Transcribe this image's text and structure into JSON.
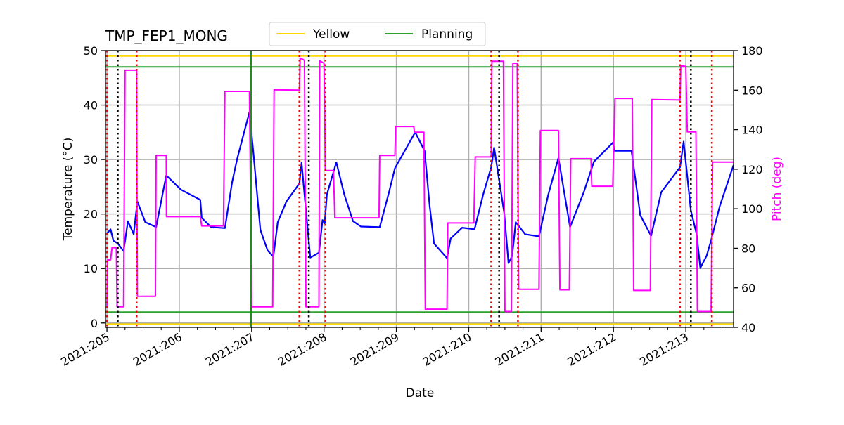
{
  "chart_data": {
    "type": "line",
    "title": "TMP_FEP1_MONG",
    "xlabel": "Date",
    "ylabel": "Temperature (°C)",
    "ylabel_right": "Pitch (deg)",
    "xlim": [
      204.98,
      213.66
    ],
    "ylim": [
      -0.8,
      50
    ],
    "ylim_right": [
      40,
      180
    ],
    "grid": true,
    "legend_placement": "top-center",
    "x_ticks": [
      205,
      206,
      207,
      208,
      209,
      210,
      211,
      212,
      213
    ],
    "x_tick_labels": [
      "2021:205",
      "2021:206",
      "2021:207",
      "2021:208",
      "2021:209",
      "2021:210",
      "2021:211",
      "2021:212",
      "2021:213"
    ],
    "y_ticks": [
      0,
      10,
      20,
      30,
      40,
      50
    ],
    "y_tick_labels": [
      "0",
      "10",
      "20",
      "30",
      "40",
      "50"
    ],
    "y_ticks_right": [
      40,
      60,
      80,
      100,
      120,
      140,
      160,
      180
    ],
    "y_tick_labels_right": [
      "40",
      "60",
      "80",
      "100",
      "120",
      "140",
      "160",
      "180"
    ],
    "colors": {
      "temperature": "#0000ff",
      "pitch": "#ff00ff",
      "yellow": "#ffd700",
      "planning": "#2ca02c",
      "grid": "#b0b0b0",
      "red_events": "#ff0000",
      "black_events": "#000000",
      "green_event": "#228b22"
    },
    "legend": [
      {
        "name": "Yellow",
        "color": "#ffd700"
      },
      {
        "name": "Planning",
        "color": "#2ca02c"
      }
    ],
    "limits": {
      "yellow": [
        49,
        -0.2
      ],
      "planning": [
        47,
        2
      ]
    },
    "event_lines": {
      "red_dotted": [
        205.0,
        205.41,
        207.66,
        208.02,
        210.31,
        210.68,
        212.92,
        213.36
      ],
      "black_dotted": [
        205.15,
        207.79,
        210.42,
        213.07
      ],
      "green_solid": [
        206.99
      ]
    },
    "series": [
      {
        "axis": "left",
        "color": "#0000ff",
        "x": [
          205.0,
          205.05,
          205.09,
          205.15,
          205.23,
          205.29,
          205.37,
          205.42,
          205.53,
          205.68,
          205.82,
          206.02,
          206.29,
          206.31,
          206.44,
          206.63,
          206.73,
          206.8,
          206.9,
          206.97,
          207.02,
          207.12,
          207.22,
          207.3,
          207.36,
          207.48,
          207.66,
          207.69,
          207.81,
          207.93,
          207.98,
          208.01,
          208.04,
          208.17,
          208.28,
          208.4,
          208.51,
          208.77,
          208.9,
          208.98,
          209.26,
          209.39,
          209.46,
          209.52,
          209.7,
          209.75,
          209.91,
          210.08,
          210.2,
          210.31,
          210.35,
          210.49,
          210.55,
          210.6,
          210.65,
          210.78,
          210.97,
          211.1,
          211.24,
          211.4,
          211.59,
          211.73,
          212.0,
          212.01,
          212.25,
          212.37,
          212.52,
          212.66,
          212.92,
          212.97,
          213.07,
          213.15,
          213.2,
          213.29,
          213.35,
          213.47,
          213.66
        ],
        "y": [
          16.4,
          17.2,
          15.1,
          14.6,
          13.2,
          18.7,
          16.3,
          22.3,
          18.5,
          17.6,
          27.1,
          24.5,
          22.6,
          19.3,
          17.6,
          17.4,
          25.8,
          30.1,
          35.2,
          38.7,
          31.8,
          17.1,
          13.3,
          12.2,
          18.5,
          22.3,
          25.6,
          29.4,
          12.0,
          12.9,
          18.9,
          18.3,
          23.6,
          29.5,
          23.6,
          18.7,
          17.7,
          17.6,
          24.1,
          28.4,
          35.0,
          31.6,
          21.5,
          14.6,
          11.9,
          15.5,
          17.5,
          17.2,
          23.6,
          28.6,
          32.2,
          20.2,
          11.0,
          12.3,
          18.5,
          16.3,
          15.9,
          23.6,
          30.3,
          17.6,
          24.0,
          29.6,
          33.2,
          31.6,
          31.6,
          19.8,
          16.0,
          24.0,
          28.6,
          33.3,
          20.6,
          16.3,
          10.1,
          12.4,
          15.2,
          21.5,
          29.0
        ]
      },
      {
        "axis": "right",
        "color": "#ff00ff",
        "x": [
          205.0,
          205.01,
          205.05,
          205.07,
          205.13,
          205.14,
          205.23,
          205.25,
          205.41,
          205.42,
          205.67,
          205.68,
          205.82,
          205.823,
          206.29,
          206.31,
          206.61,
          206.63,
          206.97,
          207.0,
          207.29,
          207.31,
          207.66,
          207.67,
          207.71,
          207.73,
          207.75,
          207.93,
          207.94,
          208.0,
          208.02,
          208.13,
          208.15,
          208.76,
          208.77,
          208.98,
          208.99,
          209.24,
          209.25,
          209.38,
          209.4,
          209.7,
          209.71,
          210.07,
          210.09,
          210.31,
          210.32,
          210.48,
          210.5,
          210.59,
          210.61,
          210.67,
          210.69,
          210.97,
          210.99,
          211.24,
          211.26,
          211.39,
          211.41,
          211.69,
          211.7,
          211.99,
          212.02,
          212.26,
          212.28,
          212.51,
          212.53,
          212.92,
          212.93,
          213.0,
          213.02,
          213.14,
          213.16,
          213.35,
          213.37,
          213.66
        ],
        "y": [
          50.4,
          74.1,
          74.1,
          80.3,
          80.3,
          50.4,
          50.4,
          170.1,
          170.1,
          55.7,
          55.7,
          127.0,
          127.0,
          96.0,
          96.0,
          91.3,
          91.3,
          159.4,
          159.4,
          50.4,
          50.4,
          160.2,
          160.0,
          176.2,
          175.5,
          175.0,
          50.4,
          50.4,
          174.8,
          173.6,
          119.3,
          119.3,
          95.4,
          95.4,
          127.0,
          127.0,
          141.6,
          141.6,
          138.7,
          138.7,
          49.2,
          49.2,
          92.8,
          92.8,
          126.2,
          126.2,
          174.6,
          174.6,
          48.0,
          48.0,
          173.6,
          173.6,
          59.3,
          59.3,
          139.6,
          139.6,
          59.0,
          59.0,
          125.3,
          125.3,
          111.4,
          111.4,
          155.8,
          155.8,
          58.7,
          58.7,
          155.2,
          155.0,
          172.4,
          172.0,
          138.9,
          138.9,
          48.0,
          48.0,
          123.6,
          123.6
        ]
      }
    ]
  }
}
